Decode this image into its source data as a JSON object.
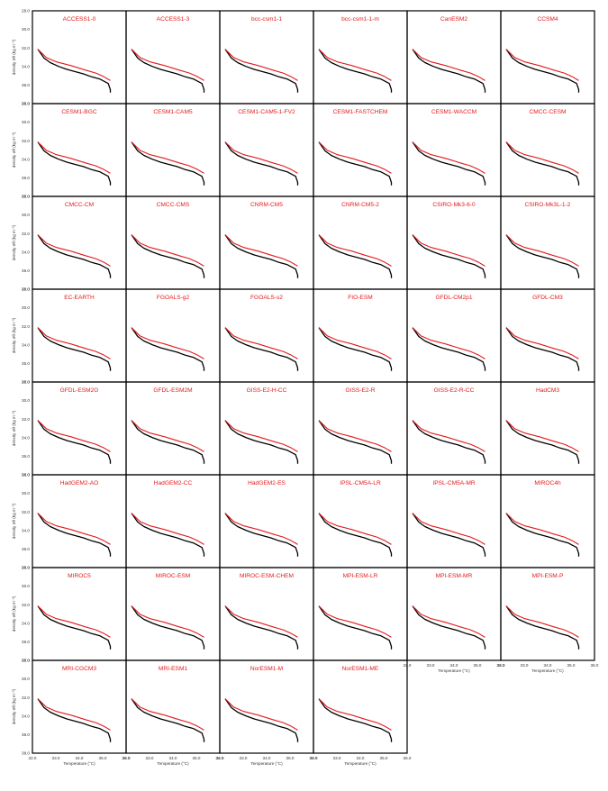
{
  "chart_data": {
    "type": "line",
    "layout": "small-multiples",
    "rows": 8,
    "cols": 6,
    "xlabel": "Temperature (°C)",
    "ylabel": "density σθ (kg m⁻³)",
    "xlim": [
      32.0,
      36.0
    ],
    "ylim": [
      38.0,
      28.0
    ],
    "x_ticks": [
      "32.0",
      "33.0",
      "34.0",
      "35.0",
      "36.0"
    ],
    "y_ticks": [
      "28.0",
      "30.0",
      "32.0",
      "34.0",
      "36.0",
      "38.0"
    ],
    "colors": {
      "observation": "#000000",
      "model": "#e41a1c"
    },
    "observation": {
      "x": [
        32.0,
        32.3,
        32.6,
        33.0,
        33.4,
        33.8,
        34.2,
        34.6,
        35.0,
        35.4,
        35.5,
        35.5
      ],
      "y": [
        31.2,
        32.4,
        33.0,
        33.5,
        33.9,
        34.2,
        34.5,
        34.9,
        35.2,
        35.8,
        36.6,
        37.0
      ]
    },
    "models": [
      {
        "name": "ACCESS1-0",
        "x": [
          32.0,
          32.4,
          32.9,
          33.6,
          34.3,
          34.8,
          35.2,
          35.5
        ],
        "y": [
          31.2,
          32.3,
          32.9,
          33.4,
          34.0,
          34.4,
          34.9,
          35.4
        ]
      },
      {
        "name": "ACCESS1-3",
        "x": [
          32.0,
          32.4,
          32.9,
          33.6,
          34.3,
          34.8,
          35.2,
          35.5
        ],
        "y": [
          31.2,
          32.3,
          32.9,
          33.4,
          34.0,
          34.4,
          34.9,
          35.4
        ]
      },
      {
        "name": "bcc-csm1-1",
        "x": [
          32.0,
          32.4,
          32.9,
          33.6,
          34.3,
          34.8,
          35.2,
          35.5
        ],
        "y": [
          31.2,
          32.3,
          32.9,
          33.4,
          34.0,
          34.4,
          34.9,
          35.4
        ]
      },
      {
        "name": "bcc-csm1-1-m",
        "x": [
          32.0,
          32.4,
          32.9,
          33.6,
          34.3,
          34.8,
          35.2,
          35.5
        ],
        "y": [
          31.2,
          32.3,
          32.9,
          33.4,
          34.0,
          34.4,
          34.9,
          35.4
        ]
      },
      {
        "name": "CanESM2",
        "x": [
          32.0,
          32.4,
          32.9,
          33.6,
          34.3,
          34.8,
          35.2,
          35.5
        ],
        "y": [
          31.2,
          32.3,
          32.9,
          33.4,
          34.0,
          34.4,
          34.9,
          35.4
        ]
      },
      {
        "name": "CCSM4",
        "x": [
          32.0,
          32.4,
          32.9,
          33.6,
          34.3,
          34.8,
          35.2,
          35.5
        ],
        "y": [
          31.2,
          32.3,
          32.9,
          33.4,
          34.0,
          34.4,
          34.9,
          35.4
        ]
      },
      {
        "name": "CESM1-BGC",
        "x": [
          32.0,
          32.4,
          32.9,
          33.6,
          34.3,
          34.8,
          35.2,
          35.5
        ],
        "y": [
          31.2,
          32.3,
          32.9,
          33.4,
          34.0,
          34.4,
          34.9,
          35.4
        ]
      },
      {
        "name": "CESM1-CAM5",
        "x": [
          32.0,
          32.4,
          32.9,
          33.6,
          34.3,
          34.8,
          35.2,
          35.5
        ],
        "y": [
          31.2,
          32.3,
          32.9,
          33.4,
          34.0,
          34.4,
          34.9,
          35.4
        ]
      },
      {
        "name": "CESM1-CAM5-1-FV2",
        "x": [
          32.0,
          32.4,
          32.9,
          33.6,
          34.3,
          34.8,
          35.2,
          35.5
        ],
        "y": [
          31.2,
          32.3,
          32.9,
          33.4,
          34.0,
          34.4,
          34.9,
          35.4
        ]
      },
      {
        "name": "CESM1-FASTCHEM",
        "x": [
          32.0,
          32.4,
          32.9,
          33.6,
          34.3,
          34.8,
          35.2,
          35.5
        ],
        "y": [
          31.2,
          32.3,
          32.9,
          33.4,
          34.0,
          34.4,
          34.9,
          35.4
        ]
      },
      {
        "name": "CESM1-WACCM",
        "x": [
          32.0,
          32.4,
          32.9,
          33.6,
          34.3,
          34.8,
          35.2,
          35.5
        ],
        "y": [
          31.2,
          32.3,
          32.9,
          33.4,
          34.0,
          34.4,
          34.9,
          35.4
        ]
      },
      {
        "name": "CMCC-CESM",
        "x": [
          32.0,
          32.4,
          32.9,
          33.6,
          34.3,
          34.8,
          35.2,
          35.5
        ],
        "y": [
          31.2,
          32.3,
          32.9,
          33.4,
          34.0,
          34.4,
          34.9,
          35.4
        ]
      },
      {
        "name": "CMCC-CM",
        "x": [
          32.0,
          32.4,
          32.9,
          33.6,
          34.3,
          34.8,
          35.2,
          35.5
        ],
        "y": [
          31.2,
          32.3,
          32.9,
          33.4,
          34.0,
          34.4,
          34.9,
          35.4
        ]
      },
      {
        "name": "CMCC-CMS",
        "x": [
          32.0,
          32.4,
          32.9,
          33.6,
          34.3,
          34.8,
          35.2,
          35.5
        ],
        "y": [
          31.2,
          32.3,
          32.9,
          33.4,
          34.0,
          34.4,
          34.9,
          35.4
        ]
      },
      {
        "name": "CNRM-CM5",
        "x": [
          32.0,
          32.4,
          32.9,
          33.6,
          34.3,
          34.8,
          35.2,
          35.5
        ],
        "y": [
          31.2,
          32.3,
          32.9,
          33.4,
          34.0,
          34.4,
          34.9,
          35.4
        ]
      },
      {
        "name": "CNRM-CM5-2",
        "x": [
          32.0,
          32.4,
          32.9,
          33.6,
          34.3,
          34.8,
          35.2,
          35.5
        ],
        "y": [
          31.2,
          32.3,
          32.9,
          33.4,
          34.0,
          34.4,
          34.9,
          35.4
        ]
      },
      {
        "name": "CSIRO-Mk3-6-0",
        "x": [
          32.0,
          32.4,
          32.9,
          33.6,
          34.3,
          34.8,
          35.2,
          35.5
        ],
        "y": [
          31.2,
          32.3,
          32.9,
          33.4,
          34.0,
          34.4,
          34.9,
          35.4
        ]
      },
      {
        "name": "CSIRO-Mk3L-1-2",
        "x": [
          32.0,
          32.4,
          32.9,
          33.6,
          34.3,
          34.8,
          35.2,
          35.5
        ],
        "y": [
          31.2,
          32.3,
          32.9,
          33.4,
          34.0,
          34.4,
          34.9,
          35.4
        ]
      },
      {
        "name": "EC-EARTH",
        "x": [
          32.0,
          32.4,
          32.9,
          33.6,
          34.3,
          34.8,
          35.2,
          35.5
        ],
        "y": [
          31.2,
          32.3,
          32.9,
          33.4,
          34.0,
          34.4,
          34.9,
          35.4
        ]
      },
      {
        "name": "FGOALS-g2",
        "x": [
          32.0,
          32.4,
          32.9,
          33.6,
          34.3,
          34.8,
          35.2,
          35.5
        ],
        "y": [
          31.2,
          32.3,
          32.9,
          33.4,
          34.0,
          34.4,
          34.9,
          35.4
        ]
      },
      {
        "name": "FGOALS-s2",
        "x": [
          32.0,
          32.4,
          32.9,
          33.6,
          34.3,
          34.8,
          35.2,
          35.5
        ],
        "y": [
          31.2,
          32.3,
          32.9,
          33.4,
          34.0,
          34.4,
          34.9,
          35.4
        ]
      },
      {
        "name": "FIO-ESM",
        "x": [
          32.0,
          32.4,
          32.9,
          33.6,
          34.3,
          34.8,
          35.2,
          35.5
        ],
        "y": [
          31.2,
          32.3,
          32.9,
          33.4,
          34.0,
          34.4,
          34.9,
          35.4
        ]
      },
      {
        "name": "GFDL-CM2p1",
        "x": [
          32.0,
          32.4,
          32.9,
          33.6,
          34.3,
          34.8,
          35.2,
          35.5
        ],
        "y": [
          31.2,
          32.3,
          32.9,
          33.4,
          34.0,
          34.4,
          34.9,
          35.4
        ]
      },
      {
        "name": "GFDL-CM3",
        "x": [
          32.0,
          32.4,
          32.9,
          33.6,
          34.3,
          34.8,
          35.2,
          35.5
        ],
        "y": [
          31.2,
          32.3,
          32.9,
          33.4,
          34.0,
          34.4,
          34.9,
          35.4
        ]
      },
      {
        "name": "GFDL-ESM2G",
        "x": [
          32.0,
          32.4,
          32.9,
          33.6,
          34.3,
          34.8,
          35.2,
          35.5
        ],
        "y": [
          31.2,
          32.3,
          32.9,
          33.4,
          34.0,
          34.4,
          34.9,
          35.4
        ]
      },
      {
        "name": "GFDL-ESM2M",
        "x": [
          32.0,
          32.4,
          32.9,
          33.6,
          34.3,
          34.8,
          35.2,
          35.5
        ],
        "y": [
          31.2,
          32.3,
          32.9,
          33.4,
          34.0,
          34.4,
          34.9,
          35.4
        ]
      },
      {
        "name": "GISS-E2-H-CC",
        "x": [
          32.0,
          32.4,
          32.9,
          33.6,
          34.3,
          34.8,
          35.2,
          35.5
        ],
        "y": [
          31.2,
          32.3,
          32.9,
          33.4,
          34.0,
          34.4,
          34.9,
          35.4
        ]
      },
      {
        "name": "GISS-E2-R",
        "x": [
          32.0,
          32.4,
          32.9,
          33.6,
          34.3,
          34.8,
          35.2,
          35.5
        ],
        "y": [
          31.2,
          32.3,
          32.9,
          33.4,
          34.0,
          34.4,
          34.9,
          35.4
        ]
      },
      {
        "name": "GISS-E2-R-CC",
        "x": [
          32.0,
          32.4,
          32.9,
          33.6,
          34.3,
          34.8,
          35.2,
          35.5
        ],
        "y": [
          31.2,
          32.3,
          32.9,
          33.4,
          34.0,
          34.4,
          34.9,
          35.4
        ]
      },
      {
        "name": "HadCM3",
        "x": [
          32.0,
          32.4,
          32.9,
          33.6,
          34.3,
          34.8,
          35.2,
          35.5
        ],
        "y": [
          31.2,
          32.3,
          32.9,
          33.4,
          34.0,
          34.4,
          34.9,
          35.4
        ]
      },
      {
        "name": "HadGEM2-AO",
        "x": [
          32.0,
          32.4,
          32.9,
          33.6,
          34.3,
          34.8,
          35.2,
          35.5
        ],
        "y": [
          31.2,
          32.3,
          32.9,
          33.4,
          34.0,
          34.4,
          34.9,
          35.4
        ]
      },
      {
        "name": "HadGEM2-CC",
        "x": [
          32.0,
          32.4,
          32.9,
          33.6,
          34.3,
          34.8,
          35.2,
          35.5
        ],
        "y": [
          31.2,
          32.3,
          32.9,
          33.4,
          34.0,
          34.4,
          34.9,
          35.4
        ]
      },
      {
        "name": "HadGEM2-ES",
        "x": [
          32.0,
          32.4,
          32.9,
          33.6,
          34.3,
          34.8,
          35.2,
          35.5
        ],
        "y": [
          31.2,
          32.3,
          32.9,
          33.4,
          34.0,
          34.4,
          34.9,
          35.4
        ]
      },
      {
        "name": "IPSL-CM5A-LR",
        "x": [
          32.0,
          32.4,
          32.9,
          33.6,
          34.3,
          34.8,
          35.2,
          35.5
        ],
        "y": [
          31.2,
          32.3,
          32.9,
          33.4,
          34.0,
          34.4,
          34.9,
          35.4
        ]
      },
      {
        "name": "IPSL-CM5A-MR",
        "x": [
          32.0,
          32.4,
          32.9,
          33.6,
          34.3,
          34.8,
          35.2,
          35.5
        ],
        "y": [
          31.2,
          32.3,
          32.9,
          33.4,
          34.0,
          34.4,
          34.9,
          35.4
        ]
      },
      {
        "name": "MIROC4h",
        "x": [
          32.0,
          32.4,
          32.9,
          33.6,
          34.3,
          34.8,
          35.2,
          35.5
        ],
        "y": [
          31.2,
          32.3,
          32.9,
          33.4,
          34.0,
          34.4,
          34.9,
          35.4
        ]
      },
      {
        "name": "MIROC5",
        "x": [
          32.0,
          32.4,
          32.9,
          33.6,
          34.3,
          34.8,
          35.2,
          35.5
        ],
        "y": [
          31.2,
          32.3,
          32.9,
          33.4,
          34.0,
          34.4,
          34.9,
          35.4
        ]
      },
      {
        "name": "MIROC-ESM",
        "x": [
          32.0,
          32.4,
          32.9,
          33.6,
          34.3,
          34.8,
          35.2,
          35.5
        ],
        "y": [
          31.2,
          32.3,
          32.9,
          33.4,
          34.0,
          34.4,
          34.9,
          35.4
        ]
      },
      {
        "name": "MIROC-ESM-CHEM",
        "x": [
          32.0,
          32.4,
          32.9,
          33.6,
          34.3,
          34.8,
          35.2,
          35.5
        ],
        "y": [
          31.2,
          32.3,
          32.9,
          33.4,
          34.0,
          34.4,
          34.9,
          35.4
        ]
      },
      {
        "name": "MPI-ESM-LR",
        "x": [
          32.0,
          32.4,
          32.9,
          33.6,
          34.3,
          34.8,
          35.2,
          35.5
        ],
        "y": [
          31.2,
          32.3,
          32.9,
          33.4,
          34.0,
          34.4,
          34.9,
          35.4
        ]
      },
      {
        "name": "MPI-ESM-MR",
        "x": [
          32.0,
          32.4,
          32.9,
          33.6,
          34.3,
          34.8,
          35.2,
          35.5
        ],
        "y": [
          31.2,
          32.3,
          32.9,
          33.4,
          34.0,
          34.4,
          34.9,
          35.4
        ]
      },
      {
        "name": "MPI-ESM-P",
        "x": [
          32.0,
          32.4,
          32.9,
          33.6,
          34.3,
          34.8,
          35.2,
          35.5
        ],
        "y": [
          31.2,
          32.3,
          32.9,
          33.4,
          34.0,
          34.4,
          34.9,
          35.4
        ]
      },
      {
        "name": "MRI-CGCM3",
        "x": [
          32.0,
          32.4,
          32.9,
          33.6,
          34.3,
          34.8,
          35.2,
          35.5
        ],
        "y": [
          31.2,
          32.3,
          32.9,
          33.4,
          34.0,
          34.4,
          34.9,
          35.4
        ]
      },
      {
        "name": "MRI-ESM1",
        "x": [
          32.0,
          32.4,
          32.9,
          33.6,
          34.3,
          34.8,
          35.2,
          35.5
        ],
        "y": [
          31.2,
          32.3,
          32.9,
          33.4,
          34.0,
          34.4,
          34.9,
          35.4
        ]
      },
      {
        "name": "NorESM1-M",
        "x": [
          32.0,
          32.4,
          32.9,
          33.6,
          34.3,
          34.8,
          35.2,
          35.5
        ],
        "y": [
          31.2,
          32.3,
          32.9,
          33.4,
          34.0,
          34.4,
          34.9,
          35.4
        ]
      },
      {
        "name": "NorESM1-ME",
        "x": [
          32.0,
          32.4,
          32.9,
          33.6,
          34.3,
          34.8,
          35.2,
          35.5
        ],
        "y": [
          31.2,
          32.3,
          32.9,
          33.4,
          34.0,
          34.4,
          34.9,
          35.4
        ]
      }
    ]
  }
}
